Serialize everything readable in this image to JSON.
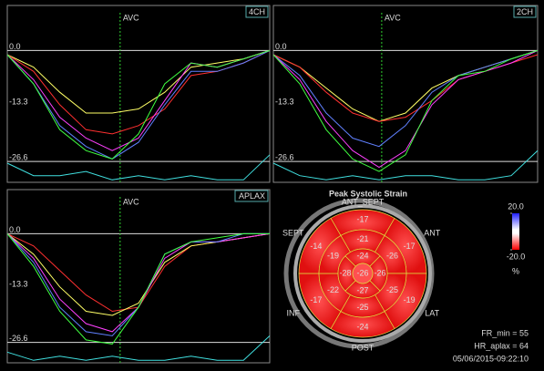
{
  "chart_data": [
    {
      "type": "line",
      "title": "4CH",
      "annotation": "AVC",
      "avc": 43,
      "x": [
        0,
        10,
        20,
        30,
        40,
        50,
        60,
        70,
        80,
        90,
        100
      ],
      "xlim": [
        0,
        100
      ],
      "ylim": [
        -31.6,
        10.8
      ],
      "yticks": [
        {
          "value": 0,
          "label": "0.0"
        },
        {
          "value": -13.3,
          "label": "-13.3"
        },
        {
          "value": -26.6,
          "label": "-26.6"
        }
      ],
      "series": [
        {
          "color": "#ffff66",
          "values": [
            -1,
            -4,
            -10,
            -15,
            -15,
            -14,
            -10,
            -4,
            -3,
            -2,
            0
          ]
        },
        {
          "color": "#ff3030",
          "values": [
            -1,
            -5,
            -13,
            -19,
            -20,
            -18,
            -14,
            -6,
            -5,
            -3,
            0
          ]
        },
        {
          "color": "#ff40ff",
          "values": [
            -1,
            -7,
            -16,
            -21,
            -24,
            -21,
            -12,
            -3,
            -4,
            -2,
            0
          ]
        },
        {
          "color": "#6080ff",
          "values": [
            -1,
            -8,
            -18,
            -23,
            -26,
            -22,
            -13,
            -5,
            -5,
            -3,
            0
          ]
        },
        {
          "color": "#40ff40",
          "values": [
            -1,
            -8,
            -19,
            -24,
            -26,
            -20,
            -8,
            -3,
            -4,
            -2,
            0
          ]
        },
        {
          "color": "#40e0e0",
          "values": [
            -27,
            -30,
            -30,
            -29,
            -31,
            -30,
            -31,
            -30,
            -31,
            -31,
            -25
          ]
        }
      ]
    },
    {
      "type": "line",
      "title": "2CH",
      "annotation": "AVC",
      "avc": 41,
      "x": [
        0,
        10,
        20,
        30,
        40,
        50,
        60,
        70,
        80,
        90,
        100
      ],
      "xlim": [
        0,
        100
      ],
      "ylim": [
        -31.6,
        10.8
      ],
      "yticks": [
        {
          "value": 0,
          "label": "0.0"
        },
        {
          "value": -13.3,
          "label": "-13.3"
        },
        {
          "value": -26.6,
          "label": "-26.6"
        }
      ],
      "series": [
        {
          "color": "#ffff66",
          "values": [
            -1,
            -4,
            -9,
            -14,
            -17,
            -15,
            -9,
            -6,
            -4,
            -2,
            0
          ]
        },
        {
          "color": "#ff3030",
          "values": [
            -1,
            -4,
            -10,
            -15,
            -17,
            -16,
            -12,
            -7,
            -5,
            -3,
            -1
          ]
        },
        {
          "color": "#6080ff",
          "values": [
            -1,
            -6,
            -15,
            -21,
            -23,
            -18,
            -10,
            -6,
            -4,
            -2,
            0
          ]
        },
        {
          "color": "#ff40ff",
          "values": [
            -1,
            -7,
            -17,
            -24,
            -28,
            -24,
            -13,
            -7,
            -5,
            -3,
            0
          ]
        },
        {
          "color": "#40ff40",
          "values": [
            -1,
            -8,
            -19,
            -26,
            -29,
            -25,
            -12,
            -6,
            -5,
            -2,
            0
          ]
        },
        {
          "color": "#40e0e0",
          "values": [
            -27,
            -30,
            -31,
            -30,
            -31,
            -30,
            -30,
            -31,
            -31,
            -30,
            -24
          ]
        }
      ]
    },
    {
      "type": "line",
      "title": "APLAX",
      "annotation": "AVC",
      "avc": 43,
      "x": [
        0,
        10,
        20,
        30,
        40,
        50,
        60,
        70,
        80,
        90,
        100
      ],
      "xlim": [
        0,
        100
      ],
      "ylim": [
        -31.6,
        10.8
      ],
      "yticks": [
        {
          "value": 0,
          "label": "0.0"
        },
        {
          "value": -13.3,
          "label": "-13.3"
        },
        {
          "value": -26.6,
          "label": "-26.6"
        }
      ],
      "series": [
        {
          "color": "#ff3030",
          "values": [
            0,
            -3,
            -9,
            -15,
            -19,
            -18,
            -8,
            -3,
            -2,
            -1,
            0
          ]
        },
        {
          "color": "#ffff66",
          "values": [
            0,
            -5,
            -13,
            -19,
            -20,
            -17,
            -7,
            -3,
            -2,
            -1,
            0
          ]
        },
        {
          "color": "#ff40ff",
          "values": [
            0,
            -6,
            -16,
            -22,
            -24,
            -18,
            -6,
            -2,
            -2,
            -1,
            0
          ]
        },
        {
          "color": "#6080ff",
          "values": [
            0,
            -7,
            -18,
            -24,
            -25,
            -18,
            -5,
            -2,
            -2,
            0,
            0
          ]
        },
        {
          "color": "#40ff40",
          "values": [
            0,
            -8,
            -19,
            -26,
            -27,
            -18,
            -5,
            -2,
            -1,
            0,
            0
          ]
        },
        {
          "color": "#40e0e0",
          "values": [
            -29,
            -31,
            -30,
            -31,
            -30,
            -31,
            -31,
            -30,
            -31,
            -31,
            -25
          ]
        }
      ]
    },
    {
      "type": "bullseye",
      "title": "Peak Systolic Strain",
      "categories": [
        "ANT_SEPT",
        "ANT",
        "LAT",
        "POST",
        "INF",
        "SEPT"
      ],
      "basal": [
        -17,
        -17,
        -19,
        -24,
        -17,
        -14
      ],
      "mid": [
        -21,
        -26,
        -25,
        -25,
        -22,
        -19
      ],
      "apical": [
        -24,
        -26,
        -27,
        -28
      ],
      "apex": -26,
      "color": "#e81010",
      "colorbar": [
        {
          "value": 20,
          "label": "20.0"
        },
        {
          "value": -20,
          "label": "-20.0"
        }
      ],
      "unit": "%",
      "annotations": [
        "FR_min = 55",
        "HR_aplax = 64",
        "05/06/2015-09:22:10"
      ]
    }
  ]
}
